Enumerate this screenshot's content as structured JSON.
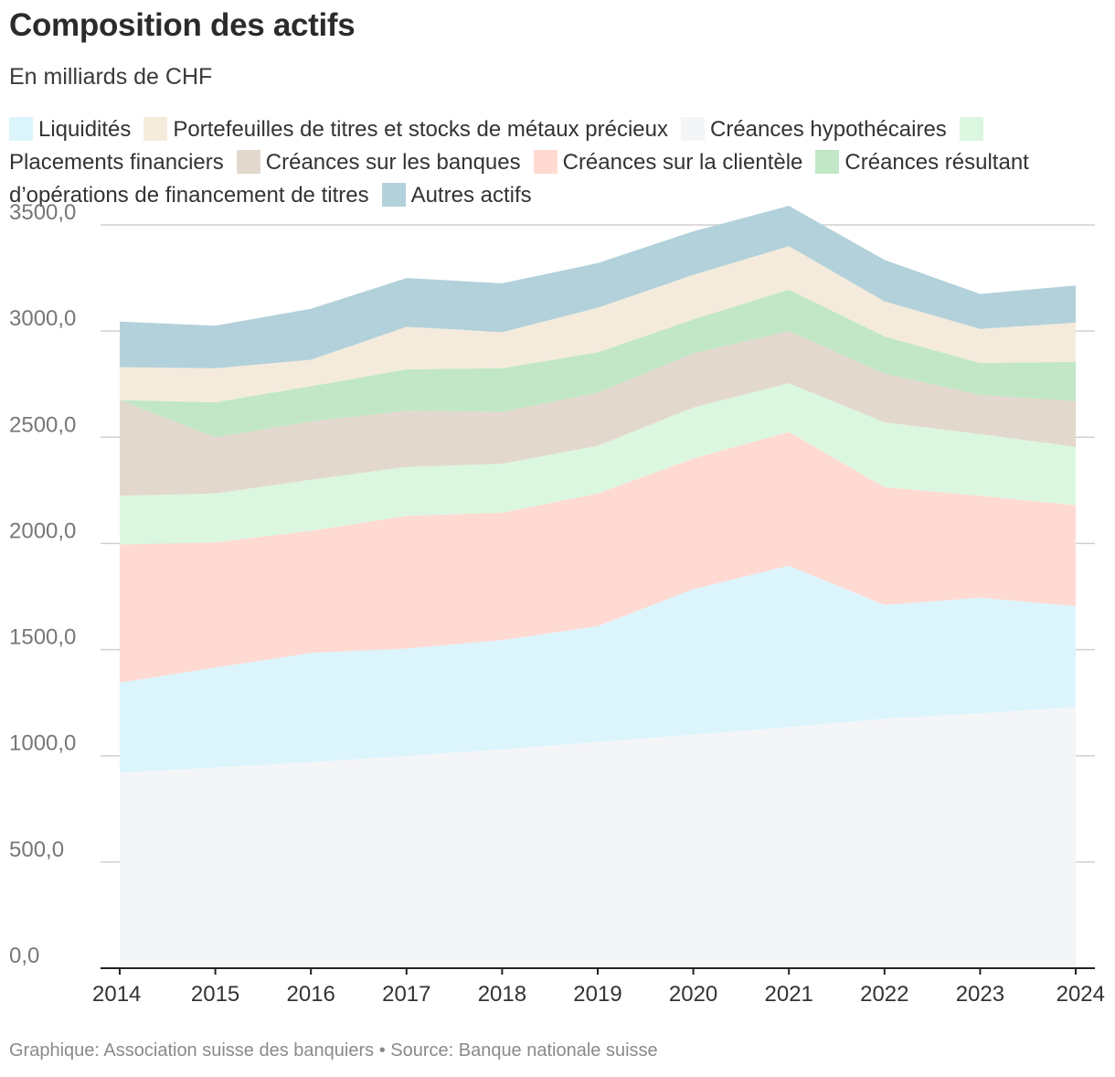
{
  "header": {
    "title": "Composition des actifs",
    "subtitle": "En milliards de CHF"
  },
  "footer": {
    "text": "Graphique: Association suisse des banquiers • Source: Banque nationale suisse"
  },
  "chart_data": {
    "type": "area",
    "stacked": true,
    "title": "Composition des actifs",
    "subtitle": "En milliards de CHF",
    "xlabel": "",
    "ylabel": "",
    "ylim": [
      0,
      3500
    ],
    "yticks": [
      0,
      500,
      1000,
      1500,
      2000,
      2500,
      3000,
      3500
    ],
    "ytick_labels": [
      "0,0",
      "500,0",
      "1000,0",
      "1500,0",
      "2000,0",
      "2500,0",
      "3000,0",
      "3500,0"
    ],
    "grid": true,
    "legend_position": "top",
    "categories": [
      "2014",
      "2015",
      "2016",
      "2017",
      "2018",
      "2019",
      "2020",
      "2021",
      "2022",
      "2023",
      "2024"
    ],
    "series": [
      {
        "name": "Créances hypothécaires",
        "color": "#f4f5f7",
        "values": [
          920,
          945,
          970,
          1000,
          1030,
          1065,
          1100,
          1135,
          1175,
          1200,
          1230
        ]
      },
      {
        "name": "Liquidités",
        "color": "#dcf5fd",
        "values": [
          425,
          470,
          515,
          505,
          515,
          545,
          685,
          760,
          535,
          545,
          475
        ]
      },
      {
        "name": "Créances sur la clientèle",
        "color": "#ffdad3",
        "values": [
          650,
          590,
          575,
          625,
          600,
          625,
          615,
          630,
          555,
          480,
          475
        ]
      },
      {
        "name": "Placements financiers",
        "color": "#dcf7e0",
        "values": [
          230,
          230,
          240,
          230,
          230,
          225,
          240,
          230,
          305,
          290,
          275
        ]
      },
      {
        "name": "Créances sur les banques",
        "color": "#e3d8cd",
        "values": [
          450,
          265,
          275,
          265,
          245,
          250,
          255,
          245,
          230,
          185,
          215
        ]
      },
      {
        "name": "Créances résultant d’opérations de financement de titres",
        "color": "#c1e7c6",
        "values": [
          0,
          165,
          165,
          195,
          205,
          190,
          160,
          195,
          175,
          150,
          185
        ]
      },
      {
        "name": "Portefeuilles de titres et stocks de métaux précieux",
        "color": "#f4ebdc",
        "values": [
          155,
          160,
          125,
          200,
          170,
          210,
          210,
          205,
          165,
          160,
          185
        ]
      },
      {
        "name": "Autres actifs",
        "color": "#b3d1da",
        "values": [
          215,
          200,
          240,
          230,
          230,
          210,
          205,
          190,
          195,
          165,
          175
        ]
      }
    ],
    "legend_order": [
      {
        "name": "Liquidités",
        "color": "#dcf5fd"
      },
      {
        "name": "Portefeuilles de titres et stocks de métaux précieux",
        "color": "#f4ebdc"
      },
      {
        "name": "Créances hypothécaires",
        "color": "#f4f5f7"
      },
      {
        "name": "Placements financiers",
        "color": "#dcf7e0"
      },
      {
        "name": "Créances sur les banques",
        "color": "#e3d8cd"
      },
      {
        "name": "Créances sur la clientèle",
        "color": "#ffdad3"
      },
      {
        "name": "Créances résultant d’opérations de financement de titres",
        "color": "#c1e7c6"
      },
      {
        "name": "Autres actifs",
        "color": "#b3d1da"
      }
    ]
  }
}
